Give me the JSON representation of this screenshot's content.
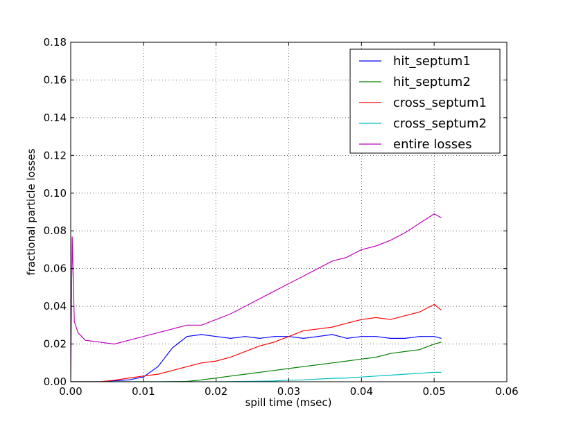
{
  "chart_data": {
    "type": "line",
    "title": "",
    "xlabel": "spill time (msec)",
    "ylabel": "fractional particle losses",
    "xlim": [
      0.0,
      0.06
    ],
    "ylim": [
      0.0,
      0.18
    ],
    "x_ticks": [
      0.0,
      0.01,
      0.02,
      0.03,
      0.04,
      0.05,
      0.06
    ],
    "x_tick_labels": [
      "0.00",
      "0.01",
      "0.02",
      "0.03",
      "0.04",
      "0.05",
      "0.06"
    ],
    "y_ticks": [
      0.0,
      0.02,
      0.04,
      0.06,
      0.08,
      0.1,
      0.12,
      0.14,
      0.16,
      0.18
    ],
    "y_tick_labels": [
      "0.00",
      "0.02",
      "0.04",
      "0.06",
      "0.08",
      "0.10",
      "0.12",
      "0.14",
      "0.16",
      "0.18"
    ],
    "grid": true,
    "legend_position": "top-right",
    "series": [
      {
        "name": "hit_septum1",
        "color": "#0000ff",
        "x": [
          0.0,
          0.002,
          0.004,
          0.006,
          0.008,
          0.01,
          0.012,
          0.014,
          0.016,
          0.018,
          0.02,
          0.022,
          0.024,
          0.026,
          0.028,
          0.03,
          0.032,
          0.034,
          0.036,
          0.038,
          0.04,
          0.042,
          0.044,
          0.046,
          0.048,
          0.05,
          0.051
        ],
        "y": [
          0.0,
          0.0,
          0.0,
          0.0005,
          0.001,
          0.0025,
          0.008,
          0.018,
          0.024,
          0.025,
          0.024,
          0.023,
          0.024,
          0.023,
          0.024,
          0.024,
          0.023,
          0.024,
          0.025,
          0.023,
          0.024,
          0.024,
          0.023,
          0.023,
          0.024,
          0.024,
          0.023
        ]
      },
      {
        "name": "hit_septum2",
        "color": "#008000",
        "x": [
          0.0,
          0.004,
          0.008,
          0.012,
          0.016,
          0.018,
          0.02,
          0.022,
          0.024,
          0.026,
          0.028,
          0.03,
          0.032,
          0.034,
          0.036,
          0.038,
          0.04,
          0.042,
          0.044,
          0.046,
          0.048,
          0.05,
          0.051
        ],
        "y": [
          0.0,
          0.0,
          0.0,
          0.0,
          0.0002,
          0.001,
          0.002,
          0.003,
          0.004,
          0.005,
          0.006,
          0.007,
          0.008,
          0.009,
          0.01,
          0.011,
          0.012,
          0.013,
          0.015,
          0.016,
          0.017,
          0.02,
          0.021
        ]
      },
      {
        "name": "cross_septum1",
        "color": "#ff0000",
        "x": [
          0.0,
          0.004,
          0.006,
          0.008,
          0.01,
          0.012,
          0.014,
          0.016,
          0.018,
          0.02,
          0.022,
          0.024,
          0.026,
          0.028,
          0.03,
          0.032,
          0.034,
          0.036,
          0.038,
          0.04,
          0.042,
          0.044,
          0.046,
          0.048,
          0.05,
          0.051
        ],
        "y": [
          0.0,
          0.0,
          0.0008,
          0.002,
          0.003,
          0.004,
          0.006,
          0.008,
          0.01,
          0.011,
          0.013,
          0.016,
          0.019,
          0.021,
          0.024,
          0.027,
          0.028,
          0.029,
          0.031,
          0.033,
          0.034,
          0.033,
          0.035,
          0.037,
          0.041,
          0.038
        ]
      },
      {
        "name": "cross_septum2",
        "color": "#00bfbf",
        "x": [
          0.0,
          0.01,
          0.02,
          0.024,
          0.028,
          0.03,
          0.032,
          0.034,
          0.036,
          0.038,
          0.04,
          0.042,
          0.044,
          0.046,
          0.048,
          0.05,
          0.051
        ],
        "y": [
          0.0,
          0.0,
          0.0,
          0.0002,
          0.0004,
          0.0008,
          0.001,
          0.0014,
          0.0018,
          0.002,
          0.0025,
          0.003,
          0.0035,
          0.004,
          0.0045,
          0.005,
          0.005
        ]
      },
      {
        "name": "entire losses",
        "color": "#bf00bf",
        "x": [
          0.0,
          0.0002,
          0.0005,
          0.001,
          0.002,
          0.004,
          0.006,
          0.008,
          0.01,
          0.012,
          0.014,
          0.016,
          0.018,
          0.02,
          0.022,
          0.024,
          0.026,
          0.028,
          0.03,
          0.032,
          0.034,
          0.036,
          0.038,
          0.04,
          0.042,
          0.044,
          0.046,
          0.048,
          0.05,
          0.051
        ],
        "y": [
          0.0,
          0.077,
          0.032,
          0.026,
          0.022,
          0.021,
          0.02,
          0.022,
          0.024,
          0.026,
          0.028,
          0.03,
          0.03,
          0.033,
          0.036,
          0.04,
          0.044,
          0.048,
          0.052,
          0.056,
          0.06,
          0.064,
          0.066,
          0.07,
          0.072,
          0.075,
          0.079,
          0.084,
          0.089,
          0.087
        ]
      }
    ]
  }
}
